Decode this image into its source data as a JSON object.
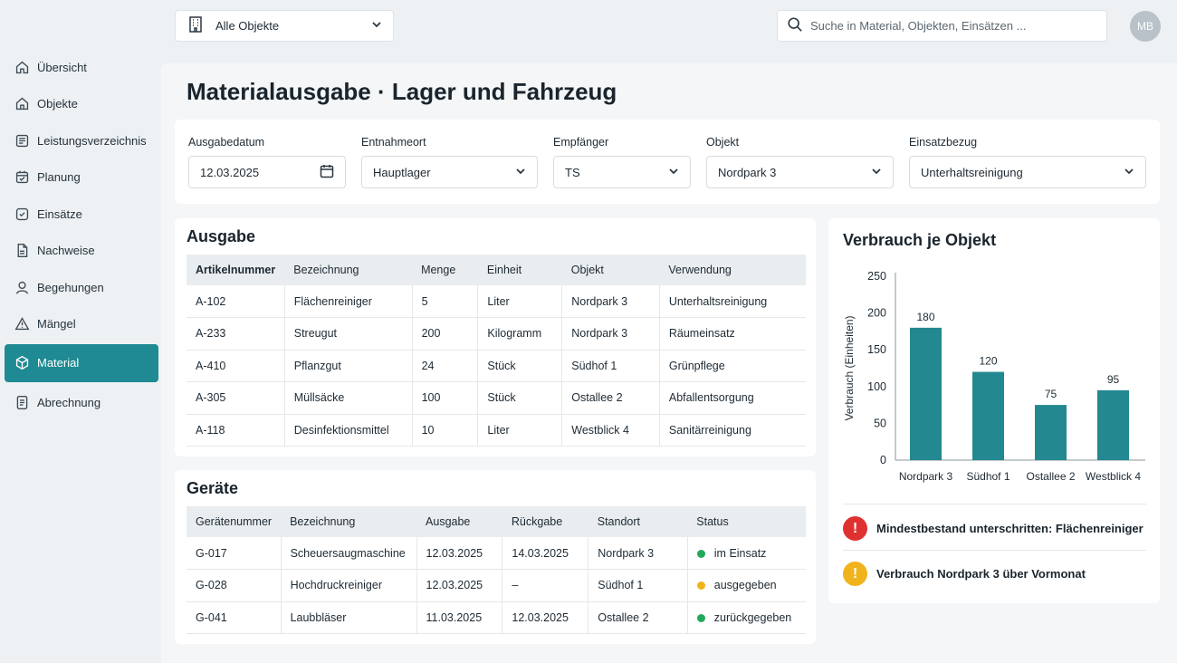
{
  "colors": {
    "accent": "#1f8a93",
    "bar": "#23888f",
    "ok": "#22a85a",
    "warn": "#f1b31c",
    "error": "#e03131"
  },
  "topbar": {
    "object_select": "Alle Objekte",
    "search_placeholder": "Suche in Material, Objekten, Einsätzen ...",
    "avatar": "MB"
  },
  "sidebar": {
    "items": [
      {
        "label": "Übersicht",
        "icon": "home-icon"
      },
      {
        "label": "Objekte",
        "icon": "building-icon"
      },
      {
        "label": "Leistungsverzeichnis",
        "icon": "list-icon"
      },
      {
        "label": "Planung",
        "icon": "calendar-check-icon"
      },
      {
        "label": "Einsätze",
        "icon": "task-icon"
      },
      {
        "label": "Nachweise",
        "icon": "document-icon"
      },
      {
        "label": "Begehungen",
        "icon": "user-icon"
      },
      {
        "label": "Mängel",
        "icon": "warning-icon"
      },
      {
        "label": "Material",
        "icon": "box-icon",
        "active": true
      },
      {
        "label": "Abrechnung",
        "icon": "receipt-icon"
      }
    ]
  },
  "page": {
    "title": "Materialausgabe · Lager und Fahrzeug"
  },
  "filters": {
    "date": {
      "label": "Ausgabedatum",
      "value": "12.03.2025"
    },
    "location": {
      "label": "Entnahmeort",
      "value": "Hauptlager"
    },
    "recipient": {
      "label": "Empfänger",
      "value": "TS"
    },
    "object": {
      "label": "Objekt",
      "value": "Nordpark 3"
    },
    "assignment": {
      "label": "Einsatzbezug",
      "value": "Unterhaltsreinigung"
    }
  },
  "issue": {
    "title": "Ausgabe",
    "headers": [
      "Artikelnummer",
      "Bezeichnung",
      "Menge",
      "Einheit",
      "Objekt",
      "Verwendung"
    ],
    "rows": [
      [
        "A-102",
        "Flächenreiniger",
        "5",
        "Liter",
        "Nordpark 3",
        "Unterhaltsreinigung"
      ],
      [
        "A-233",
        "Streugut",
        "200",
        "Kilogramm",
        "Nordpark 3",
        "Räumeinsatz"
      ],
      [
        "A-410",
        "Pflanzgut",
        "24",
        "Stück",
        "Südhof 1",
        "Grünpflege"
      ],
      [
        "A-305",
        "Müllsäcke",
        "100",
        "Stück",
        "Ostallee 2",
        "Abfallentsorgung"
      ],
      [
        "A-118",
        "Desinfektionsmittel",
        "10",
        "Liter",
        "Westblick 4",
        "Sanitärreinigung"
      ]
    ]
  },
  "devices": {
    "title": "Geräte",
    "headers": [
      "Gerätenummer",
      "Bezeichnung",
      "Ausgabe",
      "Rückgabe",
      "Standort",
      "Status"
    ],
    "rows": [
      [
        "G-017",
        "Scheuersaugmaschine",
        "12.03.2025",
        "14.03.2025",
        "Nordpark 3",
        "im Einsatz"
      ],
      [
        "G-028",
        "Hochdruckreiniger",
        "12.03.2025",
        "–",
        "Südhof 1",
        "ausgegeben"
      ],
      [
        "G-041",
        "Laubbläser",
        "11.03.2025",
        "12.03.2025",
        "Ostallee 2",
        "zurückgegeben"
      ]
    ],
    "status_colors": [
      "#22a85a",
      "#f1b31c",
      "#22a85a"
    ]
  },
  "chart_title": "Verbrauch je Objekt",
  "chart_data": {
    "type": "bar",
    "title": "Verbrauch je Objekt",
    "categories": [
      "Nordpark 3",
      "Südhof 1",
      "Ostallee 2",
      "Westblick 4"
    ],
    "values": [
      180,
      120,
      75,
      95
    ],
    "xlabel": "",
    "ylabel": "Verbrauch (Einheiten)",
    "ylim": [
      0,
      250
    ],
    "yticks": [
      0,
      50,
      100,
      150,
      200,
      250
    ],
    "grid": false
  },
  "alerts": [
    {
      "text": "Mindestbestand unterschritten: Flächenreiniger",
      "level": "error",
      "symbol": "!"
    },
    {
      "text": "Verbrauch Nordpark 3 über Vormonat",
      "level": "warning",
      "symbol": "!"
    }
  ]
}
